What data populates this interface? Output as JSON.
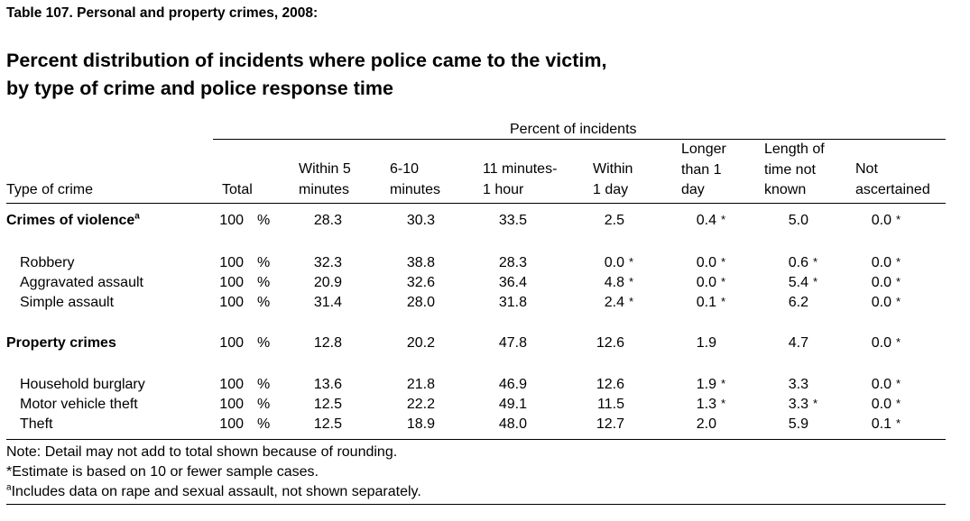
{
  "table_label": "Table 107. Personal and property crimes, 2008:",
  "title_lines": [
    "Percent distribution of incidents where police came to the victim,",
    "by type of crime and police response time"
  ],
  "spanner": "Percent of incidents",
  "headers": {
    "stub": "Type of crime",
    "total": "Total",
    "within5": [
      "Within 5",
      "minutes"
    ],
    "six_ten": [
      "6-10",
      "minutes"
    ],
    "eleven": [
      "11 minutes-",
      "1 hour"
    ],
    "day": [
      "Within",
      "1 day"
    ],
    "longer": [
      "Longer",
      "than 1",
      "day"
    ],
    "unknown": [
      "Length of",
      "time not",
      "known"
    ],
    "notasc": [
      "Not",
      "ascertained"
    ]
  },
  "rows": [
    {
      "label": "Crimes of violence",
      "sup": "a",
      "bold": true,
      "indent": false,
      "total": "100",
      "pct": "%",
      "within5": "28.3",
      "six_ten": "30.3",
      "eleven": "33.5",
      "day": "2.5",
      "day_flag": "",
      "longer": "0.4",
      "longer_flag": "*",
      "unknown": "5.0",
      "unknown_flag": "",
      "notasc": "0.0",
      "notasc_flag": "*"
    },
    {
      "label": "Robbery",
      "sup": "",
      "bold": false,
      "indent": true,
      "total": "100",
      "pct": "%",
      "within5": "32.3",
      "six_ten": "38.8",
      "eleven": "28.3",
      "day": "0.0",
      "day_flag": "*",
      "longer": "0.0",
      "longer_flag": "*",
      "unknown": "0.6",
      "unknown_flag": "*",
      "notasc": "0.0",
      "notasc_flag": "*"
    },
    {
      "label": "Aggravated assault",
      "sup": "",
      "bold": false,
      "indent": true,
      "total": "100",
      "pct": "%",
      "within5": "20.9",
      "six_ten": "32.6",
      "eleven": "36.4",
      "day": "4.8",
      "day_flag": "*",
      "longer": "0.0",
      "longer_flag": "*",
      "unknown": "5.4",
      "unknown_flag": "*",
      "notasc": "0.0",
      "notasc_flag": "*"
    },
    {
      "label": "Simple assault",
      "sup": "",
      "bold": false,
      "indent": true,
      "total": "100",
      "pct": "%",
      "within5": "31.4",
      "six_ten": "28.0",
      "eleven": "31.8",
      "day": "2.4",
      "day_flag": "*",
      "longer": "0.1",
      "longer_flag": "*",
      "unknown": "6.2",
      "unknown_flag": "",
      "notasc": "0.0",
      "notasc_flag": "*"
    },
    {
      "label": "Property crimes",
      "sup": "",
      "bold": true,
      "indent": false,
      "total": "100",
      "pct": "%",
      "within5": "12.8",
      "six_ten": "20.2",
      "eleven": "47.8",
      "day": "12.6",
      "day_flag": "",
      "longer": "1.9",
      "longer_flag": "",
      "unknown": "4.7",
      "unknown_flag": "",
      "notasc": "0.0",
      "notasc_flag": "*"
    },
    {
      "label": "Household burglary",
      "sup": "",
      "bold": false,
      "indent": true,
      "total": "100",
      "pct": "%",
      "within5": "13.6",
      "six_ten": "21.8",
      "eleven": "46.9",
      "day": "12.6",
      "day_flag": "",
      "longer": "1.9",
      "longer_flag": "*",
      "unknown": "3.3",
      "unknown_flag": "",
      "notasc": "0.0",
      "notasc_flag": "*"
    },
    {
      "label": "Motor vehicle theft",
      "sup": "",
      "bold": false,
      "indent": true,
      "total": "100",
      "pct": "%",
      "within5": "12.5",
      "six_ten": "22.2",
      "eleven": "49.1",
      "day": "11.5",
      "day_flag": "",
      "longer": "1.3",
      "longer_flag": "*",
      "unknown": "3.3",
      "unknown_flag": "*",
      "notasc": "0.0",
      "notasc_flag": "*"
    },
    {
      "label": "Theft",
      "sup": "",
      "bold": false,
      "indent": true,
      "total": "100",
      "pct": "%",
      "within5": "12.5",
      "six_ten": "18.9",
      "eleven": "48.0",
      "day": "12.7",
      "day_flag": "",
      "longer": "2.0",
      "longer_flag": "",
      "unknown": "5.9",
      "unknown_flag": "",
      "notasc": "0.1",
      "notasc_flag": "*"
    }
  ],
  "notes": [
    {
      "sup": "",
      "text": "Note: Detail may not add to total shown because of rounding."
    },
    {
      "sup": "",
      "text": "*Estimate is based on 10 or fewer sample cases."
    },
    {
      "sup": "a",
      "text": "Includes data on rape and sexual assault, not shown separately."
    }
  ]
}
